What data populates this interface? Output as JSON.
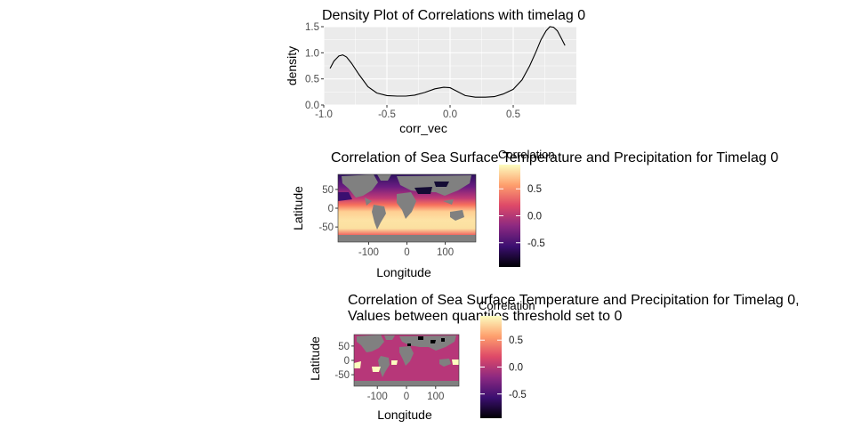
{
  "chart_data": [
    {
      "type": "line",
      "title": "Density Plot of Correlations with timelag 0",
      "xlabel": "corr_vec",
      "ylabel": "density",
      "xlim": [
        -1.0,
        1.0
      ],
      "ylim": [
        0.0,
        1.5
      ],
      "x_ticks": [
        "-1.0",
        "-0.5",
        "0.0",
        "0.5"
      ],
      "y_ticks": [
        "0.0",
        "0.5",
        "1.0",
        "1.5"
      ],
      "grid": true,
      "series": [
        {
          "x": [
            -0.95,
            -0.92,
            -0.88,
            -0.85,
            -0.82,
            -0.78,
            -0.72,
            -0.65,
            -0.58,
            -0.5,
            -0.42,
            -0.35,
            -0.28,
            -0.2,
            -0.12,
            -0.05,
            0.0,
            0.05,
            0.12,
            0.2,
            0.28,
            0.35,
            0.42,
            0.5,
            0.57,
            0.63,
            0.68,
            0.72,
            0.76,
            0.79,
            0.82,
            0.85,
            0.88,
            0.91
          ],
          "y": [
            0.7,
            0.84,
            0.94,
            0.96,
            0.92,
            0.8,
            0.58,
            0.35,
            0.23,
            0.18,
            0.17,
            0.17,
            0.19,
            0.24,
            0.31,
            0.34,
            0.33,
            0.27,
            0.18,
            0.15,
            0.15,
            0.16,
            0.21,
            0.3,
            0.48,
            0.75,
            1.02,
            1.25,
            1.42,
            1.5,
            1.49,
            1.42,
            1.28,
            1.14
          ]
        }
      ]
    },
    {
      "type": "heatmap",
      "title": "Correlation of Sea Surface Temperature and Precipitation for Timelag 0",
      "xlabel": "Longitude",
      "ylabel": "Latitude",
      "x_ticks": [
        "-100",
        "0",
        "100"
      ],
      "y_ticks": [
        "50",
        "0",
        "-50"
      ],
      "legend_title": "Correlation",
      "legend_ticks": [
        "0.5",
        "0.0",
        "-0.5"
      ],
      "legend_placement": "right"
    },
    {
      "type": "heatmap",
      "title_lines": [
        "Correlation of Sea Surface Temperature and Precipitation for Timelag 0,",
        "Values between quantiles threshold set to 0"
      ],
      "xlabel": "Longitude",
      "ylabel": "Latitude",
      "x_ticks": [
        "-100",
        "0",
        "100"
      ],
      "y_ticks": [
        "50",
        "0",
        "-50"
      ],
      "legend_title": "Correlation",
      "legend_ticks": [
        "0.5",
        "0.0",
        "-0.5"
      ],
      "legend_placement": "right"
    }
  ],
  "colors": {
    "panel_bg": "#ebebeb",
    "land": "#808080",
    "line": "#000000",
    "magma": [
      "#000004",
      "#3b0f70",
      "#8c2981",
      "#de4968",
      "#fe9f6d",
      "#fcfdbf"
    ],
    "masked": "#b73779"
  }
}
